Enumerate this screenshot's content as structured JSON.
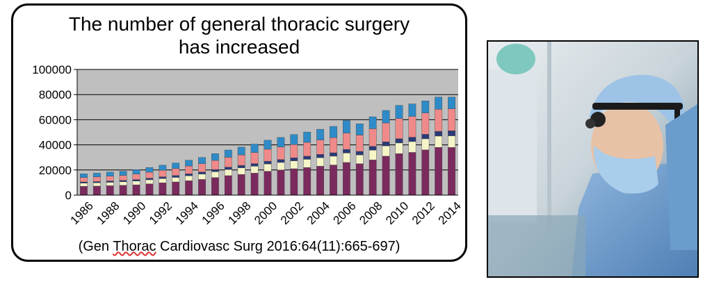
{
  "title_line1": "The number of general thoracic surgery",
  "title_line2": "has increased",
  "citation": {
    "prefix": "(Gen ",
    "underlined": "Thorac",
    "rest": " Cardiovasc Surg 2016:64(11):665-697)"
  },
  "photo": {
    "description_icon": "surgeon-photo"
  },
  "chart_data": {
    "type": "bar",
    "stacked": true,
    "categories": [
      "1986",
      "1987",
      "1988",
      "1989",
      "1990",
      "1991",
      "1992",
      "1993",
      "1994",
      "1995",
      "1996",
      "1997",
      "1998",
      "1999",
      "2000",
      "2001",
      "2002",
      "2003",
      "2004",
      "2005",
      "2006",
      "2007",
      "2008",
      "2009",
      "2010",
      "2011",
      "2012",
      "2013",
      "2014"
    ],
    "x_tick_labels": [
      "1986",
      "1988",
      "1990",
      "1992",
      "1994",
      "1996",
      "1998",
      "2000",
      "2002",
      "2004",
      "2006",
      "2008",
      "2010",
      "2012",
      "2014"
    ],
    "ylim": [
      0,
      100000
    ],
    "yticks": [
      "0",
      "20000",
      "40000",
      "60000",
      "80000",
      "100000"
    ],
    "grid": true,
    "plot_background": "#bfbfbf",
    "series": [
      {
        "color": "#7b2a5e",
        "values": [
          7000,
          7200,
          7500,
          7800,
          8200,
          9000,
          9800,
          10500,
          11500,
          12500,
          14000,
          15500,
          16500,
          17500,
          19000,
          20000,
          21000,
          22000,
          23000,
          24000,
          26000,
          25000,
          28000,
          31000,
          33000,
          34000,
          36000,
          38000,
          38000
        ]
      },
      {
        "color": "#f5f5c8",
        "values": [
          2500,
          2600,
          2700,
          2800,
          3000,
          3200,
          3400,
          3600,
          3900,
          4200,
          4600,
          4900,
          5200,
          5500,
          5800,
          6000,
          6300,
          6500,
          6800,
          7000,
          7500,
          7000,
          7800,
          8200,
          8500,
          8600,
          8800,
          9000,
          9200
        ]
      },
      {
        "color": "#2b3a78",
        "values": [
          1000,
          1000,
          1100,
          1100,
          1200,
          1300,
          1400,
          1500,
          1600,
          1700,
          1800,
          1900,
          2000,
          2100,
          2200,
          2300,
          2400,
          2500,
          2600,
          2700,
          2900,
          2800,
          3000,
          3200,
          3400,
          3500,
          3600,
          3800,
          4000
        ]
      },
      {
        "color": "#f08a8a",
        "values": [
          3500,
          3700,
          3800,
          4000,
          4300,
          4700,
          5100,
          5600,
          6100,
          6600,
          7200,
          7800,
          8300,
          8800,
          9500,
          10000,
          10500,
          11000,
          11500,
          12000,
          13000,
          13000,
          14000,
          15000,
          16000,
          16500,
          17000,
          17500,
          17500
        ]
      },
      {
        "color": "#2e8bc8",
        "values": [
          3000,
          3000,
          3200,
          3300,
          3500,
          3800,
          4100,
          4400,
          4700,
          5000,
          5400,
          5800,
          6200,
          6700,
          7200,
          7600,
          8000,
          8200,
          8500,
          9000,
          10000,
          9000,
          9500,
          10000,
          10500,
          10000,
          9600,
          9700,
          9300
        ]
      }
    ]
  }
}
